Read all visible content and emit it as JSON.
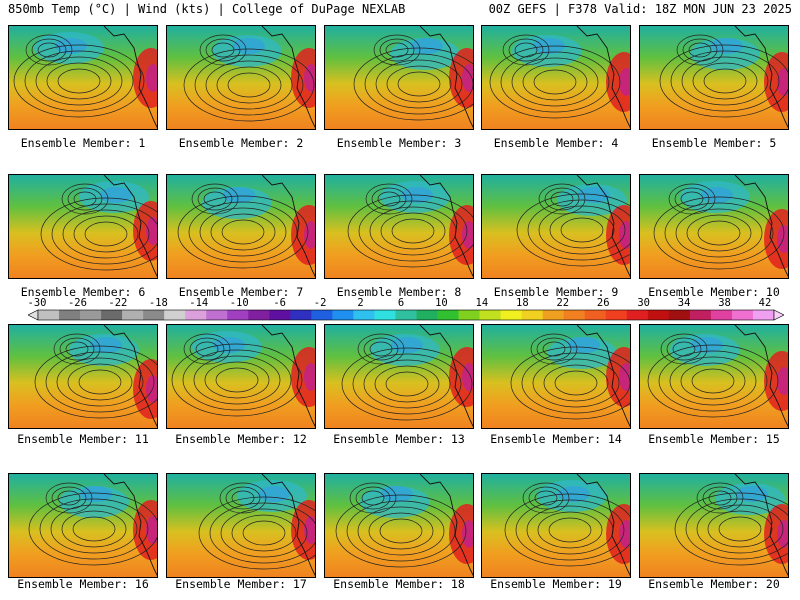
{
  "header": {
    "left": "850mb Temp (°C) | Wind (kts) | College of DuPage NEXLAB",
    "right": "00Z GEFS | F378 Valid: 18Z MON JUN 23 2025"
  },
  "colorbar": {
    "ticks": [
      "-30",
      "-26",
      "-22",
      "-18",
      "-14",
      "-10",
      "-6",
      "-2",
      "2",
      "6",
      "10",
      "14",
      "18",
      "22",
      "26",
      "30",
      "34",
      "38",
      "42"
    ],
    "colors": [
      "#c0c0c0",
      "#808080",
      "#9a9a9a",
      "#6b6b6b",
      "#b0b0b0",
      "#8a8a8a",
      "#d0d0d0",
      "#dca0dc",
      "#c070d0",
      "#a040c0",
      "#8020a0",
      "#6010a0",
      "#3030c0",
      "#2060e0",
      "#2090f0",
      "#30c0f0",
      "#30e0e0",
      "#30c0a0",
      "#20b060",
      "#30c030",
      "#80d020",
      "#c0e020",
      "#f0f020",
      "#f0d020",
      "#f0a020",
      "#f08020",
      "#f06020",
      "#f04020",
      "#e02020",
      "#c01010",
      "#a01010",
      "#c02060",
      "#e040a0",
      "#f070d0",
      "#f0a0f0"
    ]
  },
  "members": [
    {
      "label": "Ensemble Member: 1"
    },
    {
      "label": "Ensemble Member: 2"
    },
    {
      "label": "Ensemble Member: 3"
    },
    {
      "label": "Ensemble Member: 4"
    },
    {
      "label": "Ensemble Member: 5"
    },
    {
      "label": "Ensemble Member: 6"
    },
    {
      "label": "Ensemble Member: 7"
    },
    {
      "label": "Ensemble Member: 8"
    },
    {
      "label": "Ensemble Member: 9"
    },
    {
      "label": "Ensemble Member: 10"
    },
    {
      "label": "Ensemble Member: 11"
    },
    {
      "label": "Ensemble Member: 12"
    },
    {
      "label": "Ensemble Member: 13"
    },
    {
      "label": "Ensemble Member: 14"
    },
    {
      "label": "Ensemble Member: 15"
    },
    {
      "label": "Ensemble Member: 16"
    },
    {
      "label": "Ensemble Member: 17"
    },
    {
      "label": "Ensemble Member: 18"
    },
    {
      "label": "Ensemble Member: 19"
    },
    {
      "label": "Ensemble Member: 20"
    }
  ]
}
